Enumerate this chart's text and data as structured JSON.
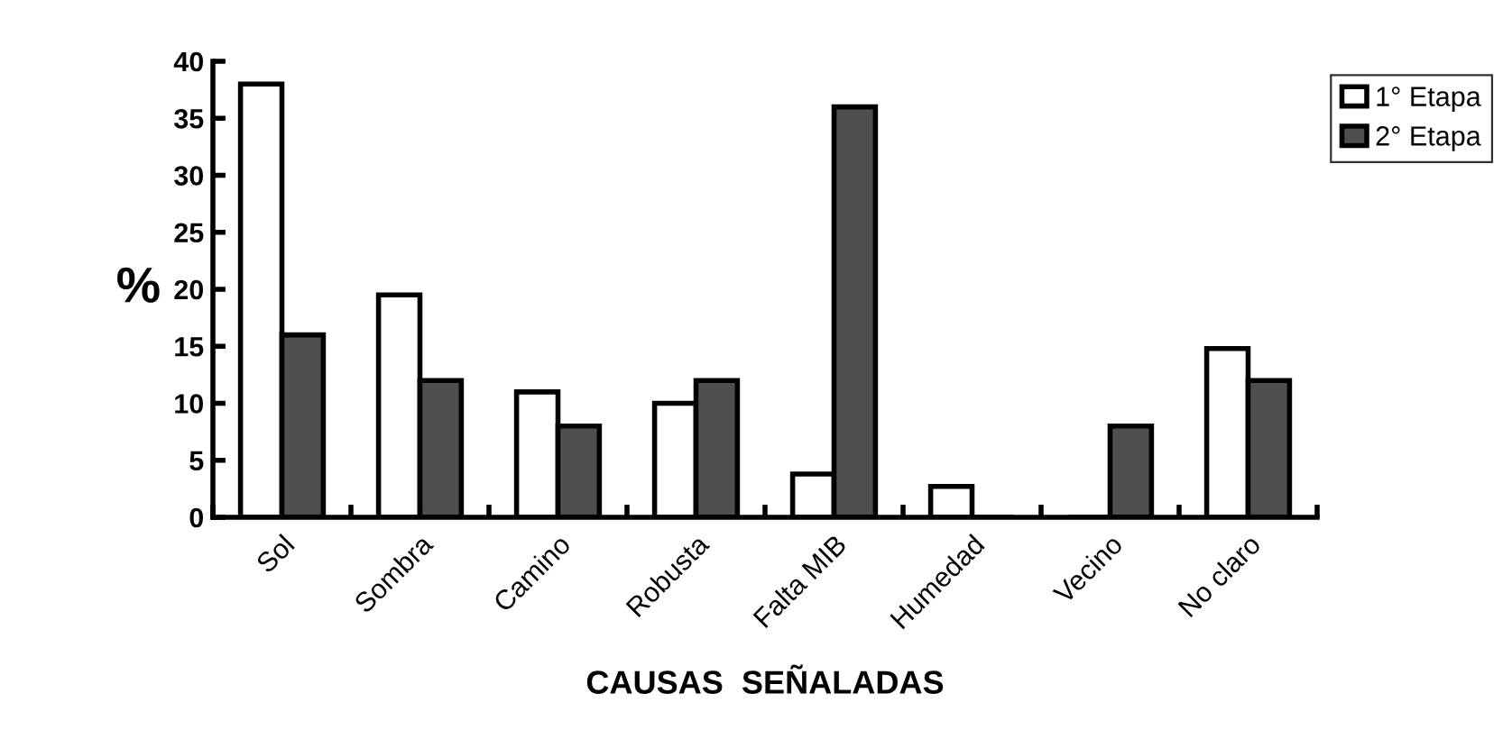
{
  "chart_data": {
    "type": "bar",
    "xlabel": "CAUSAS  SEÑALADAS",
    "ylabel": "%",
    "categories": [
      "Sol",
      "Sombra",
      "Camino",
      "Robusta",
      "Falta MIB",
      "Humedad",
      "Vecino",
      "No claro"
    ],
    "series": [
      {
        "name": "1° Etapa",
        "color": "#ffffff",
        "values": [
          38,
          19.5,
          11,
          10,
          3.8,
          2.7,
          0,
          14.8
        ]
      },
      {
        "name": "2° Etapa",
        "color": "#4d4f4d",
        "values": [
          16,
          12,
          8,
          12,
          36,
          0,
          8,
          12
        ]
      }
    ],
    "ylim": [
      0,
      40
    ],
    "yticks": [
      0,
      5,
      10,
      15,
      20,
      25,
      30,
      35,
      40
    ],
    "grid": false,
    "legend": "top right"
  }
}
